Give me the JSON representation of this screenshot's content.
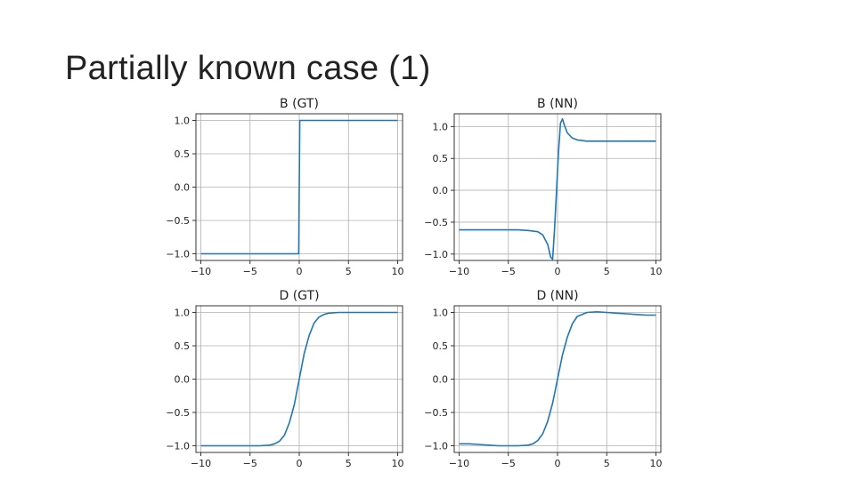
{
  "slide": {
    "title": "Partially known case (1)"
  },
  "chart_data": [
    {
      "type": "line",
      "title": "B (GT)",
      "xlabel": "",
      "ylabel": "",
      "xlim": [
        -10.5,
        10.5
      ],
      "ylim": [
        -1.1,
        1.1
      ],
      "grid": true,
      "xticks": [
        -10,
        -5,
        0,
        5,
        10
      ],
      "yticks": [
        -1.0,
        -0.5,
        0.0,
        0.5,
        1.0
      ],
      "xtick_labels": [
        "−10",
        "−5",
        "0",
        "5",
        "10"
      ],
      "ytick_labels": [
        "−1.0",
        "−0.5",
        "0.0",
        "0.5",
        "1.0"
      ],
      "series_color": "#1f77b4",
      "series": [
        {
          "x": [
            -10,
            -0.05,
            0.05,
            10
          ],
          "y": [
            -1.0,
            -1.0,
            1.0,
            1.0
          ]
        }
      ]
    },
    {
      "type": "line",
      "title": "B (NN)",
      "xlabel": "",
      "ylabel": "",
      "xlim": [
        -10.5,
        10.5
      ],
      "ylim": [
        -1.1,
        1.2
      ],
      "grid": true,
      "xticks": [
        -10,
        -5,
        0,
        5,
        10
      ],
      "yticks": [
        -1.0,
        -0.5,
        0.0,
        0.5,
        1.0
      ],
      "xtick_labels": [
        "−10",
        "−5",
        "0",
        "5",
        "10"
      ],
      "ytick_labels": [
        "−1.0",
        "−0.5",
        "0.0",
        "0.5",
        "1.0"
      ],
      "series_color": "#1f77b4",
      "series": [
        {
          "x": [
            -10,
            -8,
            -6,
            -4,
            -3,
            -2,
            -1.5,
            -1.0,
            -0.7,
            -0.5,
            -0.3,
            -0.1,
            0.1,
            0.3,
            0.5,
            0.7,
            1.0,
            1.5,
            2,
            3,
            4,
            6,
            8,
            10
          ],
          "y": [
            -0.62,
            -0.62,
            -0.62,
            -0.62,
            -0.63,
            -0.65,
            -0.7,
            -0.85,
            -1.05,
            -1.08,
            -0.6,
            0.0,
            0.6,
            1.05,
            1.12,
            1.02,
            0.9,
            0.82,
            0.79,
            0.77,
            0.77,
            0.77,
            0.77,
            0.77
          ]
        }
      ]
    },
    {
      "type": "line",
      "title": "D (GT)",
      "xlabel": "",
      "ylabel": "",
      "xlim": [
        -10.5,
        10.5
      ],
      "ylim": [
        -1.1,
        1.1
      ],
      "grid": true,
      "xticks": [
        -10,
        -5,
        0,
        5,
        10
      ],
      "yticks": [
        -1.0,
        -0.5,
        0.0,
        0.5,
        1.0
      ],
      "xtick_labels": [
        "−10",
        "−5",
        "0",
        "5",
        "10"
      ],
      "ytick_labels": [
        "−1.0",
        "−0.5",
        "0.0",
        "0.5",
        "1.0"
      ],
      "series_color": "#1f77b4",
      "series": [
        {
          "x": [
            -10,
            -6,
            -4,
            -3,
            -2.5,
            -2,
            -1.5,
            -1,
            -0.5,
            0,
            0.5,
            1,
            1.5,
            2,
            2.5,
            3,
            4,
            6,
            10
          ],
          "y": [
            -1.0,
            -1.0,
            -1.0,
            -0.99,
            -0.97,
            -0.93,
            -0.84,
            -0.65,
            -0.38,
            0.0,
            0.38,
            0.65,
            0.84,
            0.93,
            0.97,
            0.99,
            1.0,
            1.0,
            1.0
          ]
        }
      ]
    },
    {
      "type": "line",
      "title": "D (NN)",
      "xlabel": "",
      "ylabel": "",
      "xlim": [
        -10.5,
        10.5
      ],
      "ylim": [
        -1.1,
        1.1
      ],
      "grid": true,
      "xticks": [
        -10,
        -5,
        0,
        5,
        10
      ],
      "yticks": [
        -1.0,
        -0.5,
        0.0,
        0.5,
        1.0
      ],
      "xtick_labels": [
        "−10",
        "−5",
        "0",
        "5",
        "10"
      ],
      "ytick_labels": [
        "−1.0",
        "−0.5",
        "0.0",
        "0.5",
        "1.0"
      ],
      "series_color": "#1f77b4",
      "series": [
        {
          "x": [
            -10,
            -9,
            -8,
            -7,
            -6,
            -5,
            -4,
            -3,
            -2.5,
            -2,
            -1.5,
            -1,
            -0.5,
            0,
            0.5,
            1,
            1.5,
            2,
            3,
            4,
            5,
            6,
            7,
            8,
            9,
            10
          ],
          "y": [
            -0.97,
            -0.97,
            -0.98,
            -0.99,
            -1.0,
            -1.0,
            -1.0,
            -0.99,
            -0.97,
            -0.92,
            -0.82,
            -0.63,
            -0.36,
            0.0,
            0.36,
            0.63,
            0.83,
            0.94,
            1.0,
            1.01,
            1.0,
            0.99,
            0.98,
            0.97,
            0.96,
            0.96
          ]
        }
      ]
    }
  ]
}
